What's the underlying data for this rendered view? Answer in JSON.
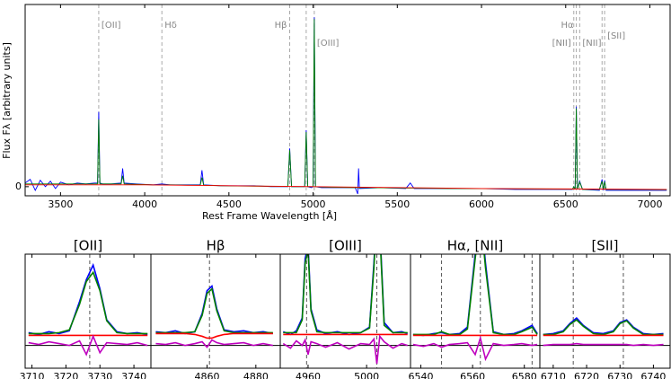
{
  "chart_data": [
    {
      "type": "line",
      "xlabel": "Rest Frame Wavelength [Å]",
      "ylabel": "Flux Fλ [arbitrary units]",
      "xlim": [
        3290,
        7120
      ],
      "ylim": [
        -0.05,
        1
      ],
      "xticks": [
        3500,
        4000,
        4500,
        5000,
        5500,
        6000,
        6500,
        7000
      ],
      "yticks": [
        0
      ],
      "line_color": "#aaaaaa",
      "lines": [
        {
          "x": 3727,
          "label": "[OII]"
        },
        {
          "x": 4102,
          "label": "Hδ"
        },
        {
          "x": 4861,
          "label": "Hβ"
        },
        {
          "x": 4959
        },
        {
          "x": 5007,
          "label": "[OIII]"
        },
        {
          "x": 6548,
          "label": "[NII]"
        },
        {
          "x": 6563,
          "label": "Hα"
        },
        {
          "x": 6583,
          "label": "[NII]"
        },
        {
          "x": 6716
        },
        {
          "x": 6731,
          "label": "[SII]"
        }
      ],
      "x": [
        3290,
        3320,
        3350,
        3380,
        3410,
        3440,
        3470,
        3500,
        3550,
        3600,
        3650,
        3700,
        3720,
        3727,
        3734,
        3750,
        3800,
        3860,
        3869,
        3878,
        3950,
        4050,
        4102,
        4150,
        4250,
        4330,
        4340,
        4350,
        4450,
        4550,
        4650,
        4750,
        4850,
        4861,
        4872,
        4900,
        4950,
        4959,
        4968,
        4990,
        5000,
        5007,
        5014,
        5050,
        5150,
        5250,
        5265,
        5270,
        5275,
        5400,
        5550,
        5577,
        5600,
        5800,
        6000,
        6200,
        6400,
        6540,
        6548,
        6556,
        6563,
        6570,
        6583,
        6600,
        6700,
        6716,
        6724,
        6731,
        6740,
        6900,
        7100
      ],
      "series": [
        {
          "color": "#0000ff",
          "values": [
            0.02,
            0.04,
            -0.02,
            0.035,
            0.0,
            0.03,
            -0.01,
            0.025,
            0.01,
            0.02,
            0.015,
            0.02,
            0.02,
            0.41,
            0.02,
            0.015,
            0.015,
            0.02,
            0.1,
            0.02,
            0.015,
            0.01,
            0.015,
            0.01,
            0.01,
            0.01,
            0.09,
            0.01,
            0.005,
            0.005,
            0.005,
            0.0,
            0.0,
            0.21,
            0.0,
            0.0,
            0.0,
            0.31,
            0.0,
            -0.005,
            0.0,
            0.93,
            0.0,
            -0.005,
            -0.005,
            -0.005,
            -0.04,
            0.1,
            -0.01,
            -0.005,
            -0.01,
            0.02,
            -0.01,
            -0.01,
            -0.01,
            -0.015,
            -0.015,
            -0.015,
            0.0,
            -0.015,
            0.44,
            -0.015,
            0.03,
            -0.015,
            -0.02,
            0.04,
            -0.02,
            0.035,
            -0.02,
            -0.02,
            -0.02
          ]
        },
        {
          "color": "#008000",
          "values": [
            0.015,
            0.015,
            0.015,
            0.015,
            0.015,
            0.015,
            0.015,
            0.015,
            0.015,
            0.015,
            0.015,
            0.015,
            0.015,
            0.37,
            0.015,
            0.015,
            0.015,
            0.015,
            0.06,
            0.015,
            0.013,
            0.01,
            0.01,
            0.01,
            0.008,
            0.008,
            0.05,
            0.008,
            0.005,
            0.004,
            0.003,
            0.002,
            0.001,
            0.2,
            0.0,
            0.0,
            0.0,
            0.3,
            0.0,
            0.0,
            0.0,
            0.92,
            0.0,
            -0.002,
            -0.004,
            -0.005,
            -0.005,
            -0.005,
            -0.005,
            -0.006,
            -0.008,
            -0.008,
            -0.008,
            -0.01,
            -0.011,
            -0.012,
            -0.013,
            -0.014,
            0.0,
            -0.014,
            0.43,
            -0.014,
            0.025,
            -0.015,
            -0.015,
            0.03,
            -0.015,
            0.028,
            -0.015,
            -0.016,
            -0.017
          ]
        },
        {
          "color": "#ff0000",
          "x": [
            3290,
            4000,
            5000,
            6000,
            7100
          ],
          "values": [
            0.01,
            0.01,
            0.0,
            -0.01,
            -0.015
          ]
        }
      ]
    },
    {
      "type": "line",
      "title": "[OII]",
      "xlim": [
        3708,
        3745
      ],
      "ylim": [
        -0.25,
        1
      ],
      "xticks": [
        3710,
        3720,
        3730,
        3740
      ],
      "line_color": "#555555",
      "lines": [
        3727
      ],
      "x": [
        3709,
        3712,
        3715,
        3718,
        3721,
        3724,
        3726,
        3728,
        3730,
        3732,
        3735,
        3738,
        3741,
        3744
      ],
      "series": [
        {
          "color": "#0000ff",
          "values": [
            0.14,
            0.12,
            0.15,
            0.13,
            0.16,
            0.48,
            0.72,
            0.88,
            0.62,
            0.28,
            0.15,
            0.13,
            0.14,
            0.12
          ]
        },
        {
          "color": "#008000",
          "values": [
            0.13,
            0.13,
            0.13,
            0.14,
            0.17,
            0.45,
            0.7,
            0.8,
            0.6,
            0.27,
            0.14,
            0.13,
            0.13,
            0.13
          ]
        },
        {
          "color": "#ff0000",
          "values": [
            0.11,
            0.11,
            0.11,
            0.11,
            0.11,
            0.11,
            0.11,
            0.11,
            0.11,
            0.11,
            0.11,
            0.11,
            0.11,
            0.11
          ]
        },
        {
          "color": "#bf00bf",
          "values": [
            0.03,
            0.01,
            0.04,
            0.02,
            0.0,
            0.05,
            -0.1,
            0.1,
            -0.08,
            0.03,
            0.02,
            0.01,
            0.03,
            0.0
          ]
        }
      ]
    },
    {
      "type": "line",
      "title": "Hβ",
      "xlim": [
        4837,
        4890
      ],
      "ylim": [
        -0.25,
        1
      ],
      "xticks": [
        4860,
        4880
      ],
      "line_color": "#555555",
      "lines": [
        4861
      ],
      "x": [
        4839,
        4843,
        4847,
        4851,
        4855,
        4858,
        4860,
        4862,
        4864,
        4867,
        4871,
        4875,
        4879,
        4883,
        4887
      ],
      "series": [
        {
          "color": "#0000ff",
          "values": [
            0.15,
            0.14,
            0.16,
            0.13,
            0.15,
            0.35,
            0.6,
            0.65,
            0.4,
            0.17,
            0.15,
            0.16,
            0.14,
            0.15,
            0.13
          ]
        },
        {
          "color": "#008000",
          "values": [
            0.14,
            0.14,
            0.14,
            0.14,
            0.15,
            0.33,
            0.57,
            0.62,
            0.38,
            0.16,
            0.14,
            0.14,
            0.14,
            0.14,
            0.14
          ]
        },
        {
          "color": "#ff0000",
          "values": [
            0.13,
            0.13,
            0.13,
            0.13,
            0.12,
            0.1,
            0.08,
            0.08,
            0.1,
            0.12,
            0.13,
            0.13,
            0.13,
            0.13,
            0.13
          ]
        },
        {
          "color": "#bf00bf",
          "values": [
            0.02,
            0.01,
            0.03,
            0.0,
            0.02,
            0.04,
            -0.02,
            0.06,
            0.03,
            0.01,
            0.02,
            0.03,
            0.0,
            0.02,
            0.0
          ]
        }
      ]
    },
    {
      "type": "line",
      "title": "[OIII]",
      "xlim": [
        4941,
        5030
      ],
      "ylim": [
        -0.25,
        1
      ],
      "xticks": [
        4960,
        5000
      ],
      "line_color": "#555555",
      "lines": [
        4959,
        5007
      ],
      "x": [
        4943,
        4948,
        4952,
        4956,
        4958,
        4960,
        4962,
        4966,
        4972,
        4980,
        4988,
        4996,
        5002,
        5005,
        5007,
        5009,
        5012,
        5018,
        5024,
        5028
      ],
      "series": [
        {
          "color": "#0000ff",
          "values": [
            0.15,
            0.12,
            0.16,
            0.3,
            0.95,
            1.1,
            0.4,
            0.17,
            0.13,
            0.15,
            0.12,
            0.14,
            0.2,
            0.9,
            1.5,
            1.3,
            0.25,
            0.14,
            0.15,
            0.13
          ]
        },
        {
          "color": "#008000",
          "values": [
            0.14,
            0.14,
            0.14,
            0.28,
            0.9,
            1.05,
            0.38,
            0.15,
            0.14,
            0.14,
            0.14,
            0.14,
            0.19,
            0.85,
            1.45,
            1.25,
            0.22,
            0.14,
            0.14,
            0.14
          ]
        },
        {
          "color": "#ff0000",
          "values": [
            0.12,
            0.12,
            0.12,
            0.12,
            0.12,
            0.12,
            0.12,
            0.12,
            0.12,
            0.12,
            0.12,
            0.12,
            0.12,
            0.12,
            0.12,
            0.12,
            0.12,
            0.12,
            0.12,
            0.12
          ]
        },
        {
          "color": "#bf00bf",
          "values": [
            0.02,
            -0.03,
            0.05,
            0.0,
            0.06,
            -0.1,
            0.04,
            0.02,
            -0.02,
            0.03,
            -0.04,
            0.02,
            0.01,
            0.07,
            -0.2,
            0.1,
            0.04,
            -0.03,
            0.02,
            0.0
          ]
        }
      ]
    },
    {
      "type": "line",
      "title": "Hα, [NII]",
      "xlim": [
        6536,
        6586
      ],
      "ylim": [
        -0.25,
        1
      ],
      "xticks": [
        6540,
        6560,
        6580
      ],
      "line_color": "#555555",
      "lines": [
        6548,
        6563,
        6583
      ],
      "x": [
        6537,
        6541,
        6545,
        6548,
        6551,
        6555,
        6558,
        6561,
        6563,
        6565,
        6568,
        6572,
        6576,
        6579,
        6583,
        6585
      ],
      "series": [
        {
          "color": "#0000ff",
          "values": [
            0.12,
            0.11,
            0.13,
            0.14,
            0.12,
            0.13,
            0.2,
            1.0,
            1.5,
            0.9,
            0.15,
            0.12,
            0.13,
            0.16,
            0.22,
            0.13
          ]
        },
        {
          "color": "#008000",
          "values": [
            0.12,
            0.12,
            0.12,
            0.15,
            0.12,
            0.12,
            0.18,
            0.95,
            1.45,
            0.85,
            0.14,
            0.12,
            0.12,
            0.15,
            0.2,
            0.12
          ]
        },
        {
          "color": "#ff0000",
          "values": [
            0.11,
            0.11,
            0.11,
            0.11,
            0.11,
            0.11,
            0.11,
            0.11,
            0.11,
            0.11,
            0.11,
            0.11,
            0.11,
            0.11,
            0.11,
            0.11
          ]
        },
        {
          "color": "#bf00bf",
          "values": [
            0.01,
            -0.01,
            0.02,
            -0.02,
            0.01,
            0.02,
            0.03,
            -0.1,
            0.08,
            -0.15,
            0.02,
            0.0,
            0.01,
            0.02,
            0.0,
            0.01
          ]
        }
      ]
    },
    {
      "type": "line",
      "title": "[SII]",
      "xlim": [
        6706,
        6745
      ],
      "ylim": [
        -0.25,
        1
      ],
      "xticks": [
        6710,
        6720,
        6730,
        6740
      ],
      "line_color": "#555555",
      "lines": [
        6716,
        6731
      ],
      "x": [
        6707,
        6710,
        6713,
        6715,
        6717,
        6719,
        6722,
        6725,
        6728,
        6730,
        6732,
        6734,
        6737,
        6740,
        6743
      ],
      "series": [
        {
          "color": "#0000ff",
          "values": [
            0.12,
            0.13,
            0.16,
            0.24,
            0.3,
            0.22,
            0.14,
            0.13,
            0.16,
            0.25,
            0.28,
            0.2,
            0.13,
            0.12,
            0.13
          ]
        },
        {
          "color": "#008000",
          "values": [
            0.12,
            0.12,
            0.15,
            0.23,
            0.28,
            0.21,
            0.13,
            0.12,
            0.15,
            0.24,
            0.27,
            0.19,
            0.12,
            0.12,
            0.12
          ]
        },
        {
          "color": "#ff0000",
          "values": [
            0.11,
            0.11,
            0.11,
            0.11,
            0.11,
            0.11,
            0.11,
            0.11,
            0.11,
            0.11,
            0.11,
            0.11,
            0.11,
            0.11,
            0.11
          ]
        },
        {
          "color": "#bf00bf",
          "values": [
            0.0,
            0.01,
            0.01,
            0.01,
            0.02,
            0.01,
            0.01,
            0.01,
            0.01,
            0.01,
            0.01,
            0.0,
            0.01,
            0.0,
            0.01
          ]
        }
      ]
    }
  ]
}
